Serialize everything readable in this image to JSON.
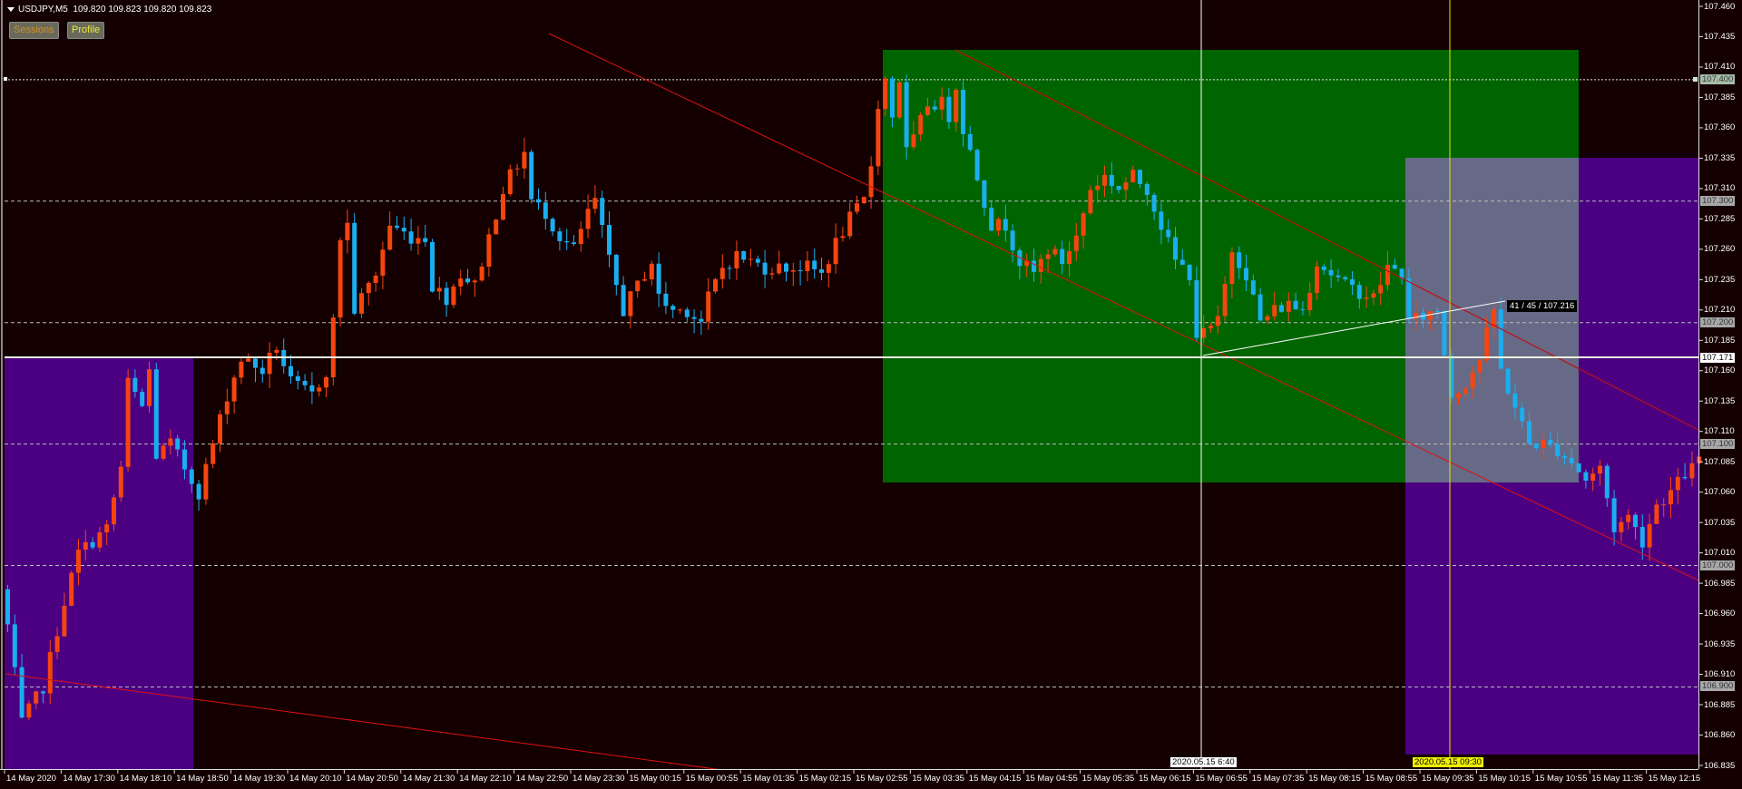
{
  "header": {
    "symbol": "USDJPY,M5",
    "quote": "109.820 109.823 109.820 109.823"
  },
  "buttons": {
    "sessions": "Sessions",
    "profile": "Profile"
  },
  "colors": {
    "background": "#140000",
    "bull": "#f5450f",
    "bear": "#1aaef0",
    "zone_green": "#006400",
    "zone_purple": "#4b0082",
    "zone_gray": "#666a86",
    "trendline": "#e01010",
    "crosshair_white": "#ffffff",
    "crosshair_yellow": "#e8e800"
  },
  "chart_data": {
    "type": "candlestick",
    "symbol": "USDJPY",
    "timeframe": "M5",
    "bars": 240,
    "close_path": [
      [
        0,
        106.95
      ],
      [
        2,
        106.87
      ],
      [
        5,
        106.9
      ],
      [
        8,
        106.97
      ],
      [
        10,
        107.01
      ],
      [
        14,
        107.03
      ],
      [
        16,
        107.08
      ],
      [
        17,
        107.15
      ],
      [
        19,
        107.13
      ],
      [
        20,
        107.16
      ],
      [
        21,
        107.09
      ],
      [
        23,
        107.1
      ],
      [
        25,
        107.08
      ],
      [
        27,
        107.06
      ],
      [
        29,
        107.1
      ],
      [
        31,
        107.14
      ],
      [
        33,
        107.17
      ],
      [
        36,
        107.16
      ],
      [
        38,
        107.18
      ],
      [
        40,
        107.15
      ],
      [
        43,
        107.14
      ],
      [
        45,
        107.16
      ],
      [
        46,
        107.2
      ],
      [
        47,
        107.27
      ],
      [
        48,
        107.28
      ],
      [
        49,
        107.21
      ],
      [
        50,
        107.22
      ],
      [
        52,
        107.24
      ],
      [
        54,
        107.28
      ],
      [
        57,
        107.27
      ],
      [
        59,
        107.27
      ],
      [
        60,
        107.23
      ],
      [
        62,
        107.22
      ],
      [
        64,
        107.24
      ],
      [
        66,
        107.23
      ],
      [
        68,
        107.27
      ],
      [
        70,
        107.31
      ],
      [
        72,
        107.33
      ],
      [
        73,
        107.34
      ],
      [
        74,
        107.3
      ],
      [
        76,
        107.29
      ],
      [
        78,
        107.27
      ],
      [
        80,
        107.26
      ],
      [
        82,
        107.29
      ],
      [
        83,
        107.3
      ],
      [
        85,
        107.25
      ],
      [
        87,
        107.21
      ],
      [
        89,
        107.23
      ],
      [
        91,
        107.25
      ],
      [
        92,
        107.22
      ],
      [
        94,
        107.21
      ],
      [
        96,
        107.21
      ],
      [
        98,
        107.2
      ],
      [
        99,
        107.22
      ],
      [
        101,
        107.245
      ],
      [
        103,
        107.255
      ],
      [
        105,
        107.25
      ],
      [
        107,
        107.245
      ],
      [
        110,
        107.245
      ],
      [
        113,
        107.245
      ],
      [
        115,
        107.24
      ],
      [
        117,
        107.265
      ],
      [
        119,
        107.285
      ],
      [
        121,
        107.3
      ],
      [
        122,
        107.33
      ],
      [
        123,
        107.38
      ],
      [
        124,
        107.4
      ],
      [
        125,
        107.37
      ],
      [
        126,
        107.4
      ],
      [
        127,
        107.34
      ],
      [
        128,
        107.35
      ],
      [
        130,
        107.38
      ],
      [
        132,
        107.38
      ],
      [
        133,
        107.37
      ],
      [
        134,
        107.395
      ],
      [
        135,
        107.36
      ],
      [
        137,
        107.32
      ],
      [
        139,
        107.28
      ],
      [
        141,
        107.28
      ],
      [
        143,
        107.25
      ],
      [
        145,
        107.24
      ],
      [
        147,
        107.26
      ],
      [
        149,
        107.25
      ],
      [
        151,
        107.27
      ],
      [
        153,
        107.31
      ],
      [
        155,
        107.32
      ],
      [
        157,
        107.31
      ],
      [
        159,
        107.32
      ],
      [
        161,
        107.31
      ],
      [
        163,
        107.28
      ],
      [
        165,
        107.25
      ],
      [
        167,
        107.24
      ],
      [
        168,
        107.19
      ],
      [
        169,
        107.19
      ],
      [
        171,
        107.2
      ],
      [
        173,
        107.26
      ],
      [
        175,
        107.24
      ],
      [
        177,
        107.2
      ],
      [
        179,
        107.21
      ],
      [
        181,
        107.215
      ],
      [
        183,
        107.21
      ],
      [
        185,
        107.25
      ],
      [
        187,
        107.24
      ],
      [
        189,
        107.23
      ],
      [
        191,
        107.225
      ],
      [
        193,
        107.22
      ],
      [
        195,
        107.245
      ],
      [
        197,
        107.24
      ],
      [
        198,
        107.2
      ],
      [
        200,
        107.205
      ],
      [
        202,
        107.21
      ],
      [
        204,
        107.14
      ],
      [
        206,
        107.15
      ],
      [
        208,
        107.17
      ],
      [
        210,
        107.21
      ],
      [
        211,
        107.16
      ],
      [
        213,
        107.13
      ],
      [
        215,
        107.1
      ],
      [
        217,
        107.1
      ],
      [
        219,
        107.095
      ],
      [
        221,
        107.085
      ],
      [
        223,
        107.07
      ],
      [
        225,
        107.08
      ],
      [
        227,
        107.03
      ],
      [
        229,
        107.04
      ],
      [
        231,
        107.02
      ],
      [
        233,
        107.05
      ],
      [
        235,
        107.06
      ],
      [
        237,
        107.075
      ],
      [
        239,
        107.085
      ]
    ],
    "price_axis": {
      "max": 107.46,
      "min": 106.835,
      "step": 0.025
    },
    "price_ticks": [
      "107.460",
      "107.435",
      "107.410",
      "107.385",
      "107.360",
      "107.335",
      "107.310",
      "107.285",
      "107.260",
      "107.235",
      "107.210",
      "107.185",
      "107.160",
      "107.135",
      "107.110",
      "107.085",
      "107.060",
      "107.035",
      "107.010",
      "106.985",
      "106.960",
      "106.935",
      "106.910",
      "106.885",
      "106.860",
      "106.835"
    ],
    "levels": [
      {
        "label": "107.400",
        "price": 107.4
      },
      {
        "label": "107.300",
        "price": 107.3
      },
      {
        "label": "107.200",
        "price": 107.2
      },
      {
        "label": "107.100",
        "price": 107.1
      },
      {
        "label": "107.000",
        "price": 107.0
      },
      {
        "label": "106.900",
        "price": 106.9
      }
    ],
    "crosshair_price": {
      "label": "107.171",
      "price": 107.171
    },
    "time_ticks": [
      "14 May 2020",
      "14 May 17:30",
      "14 May 18:10",
      "14 May 18:50",
      "14 May 19:30",
      "14 May 20:10",
      "14 May 20:50",
      "14 May 21:30",
      "14 May 22:10",
      "14 May 22:50",
      "14 May 23:30",
      "15 May 00:15",
      "15 May 00:55",
      "15 May 01:35",
      "15 May 02:15",
      "15 May 02:55",
      "15 May 03:35",
      "15 May 04:15",
      "15 May 04:55",
      "15 May 05:35",
      "15 May 06:15",
      "15 May 06:55",
      "15 May 07:35",
      "15 May 08:15",
      "15 May 08:55",
      "15 May 09:35",
      "15 May 10:15",
      "15 May 10:55",
      "15 May 11:35",
      "15 May 12:15"
    ],
    "crosshair_time_white": "2020.05.15 6:40",
    "crosshair_time_yellow": "2020.05.15 09:30",
    "measure_label": "41 / 45 / 107.216"
  }
}
